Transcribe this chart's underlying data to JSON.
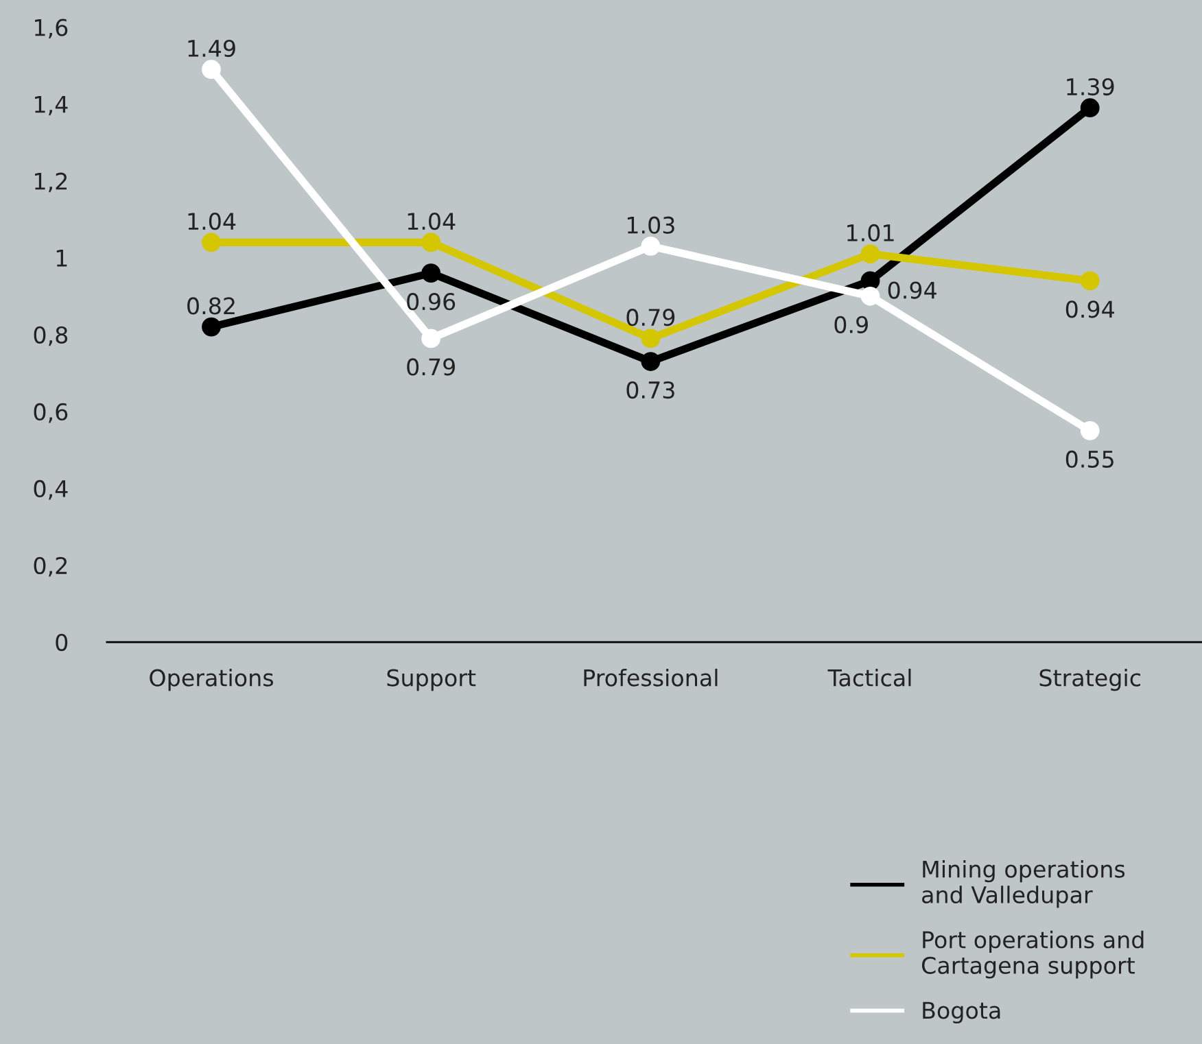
{
  "chart_data": {
    "type": "line",
    "categories": [
      "Operations",
      "Support",
      "Professional",
      "Tactical",
      "Strategic"
    ],
    "series": [
      {
        "name": "Mining operations\nand Valledupar",
        "color": "#000000",
        "values": [
          0.82,
          0.96,
          0.73,
          0.94,
          1.39
        ]
      },
      {
        "name": "Port operations and\nCartagena support",
        "color": "#d4c600",
        "values": [
          1.04,
          1.04,
          0.79,
          1.01,
          0.94
        ]
      },
      {
        "name": "Bogota",
        "color": "#ffffff",
        "values": [
          1.49,
          0.79,
          1.03,
          0.9,
          0.55
        ]
      }
    ],
    "ylim": [
      0,
      1.6
    ],
    "yticks": [
      0,
      {
        "value": 0.2,
        "label": "0,2"
      },
      {
        "value": 0.4,
        "label": "0,4"
      },
      {
        "value": 0.6,
        "label": "0,6"
      },
      {
        "value": 0.8,
        "label": "0,8"
      },
      1,
      {
        "value": 1.2,
        "label": "1,2"
      },
      {
        "value": 1.4,
        "label": "1,4"
      },
      {
        "value": 1.6,
        "label": "1,6"
      }
    ],
    "data_labels": true,
    "marker": "circle",
    "line_style": "solid",
    "grid": false,
    "legend": "bottom right"
  }
}
